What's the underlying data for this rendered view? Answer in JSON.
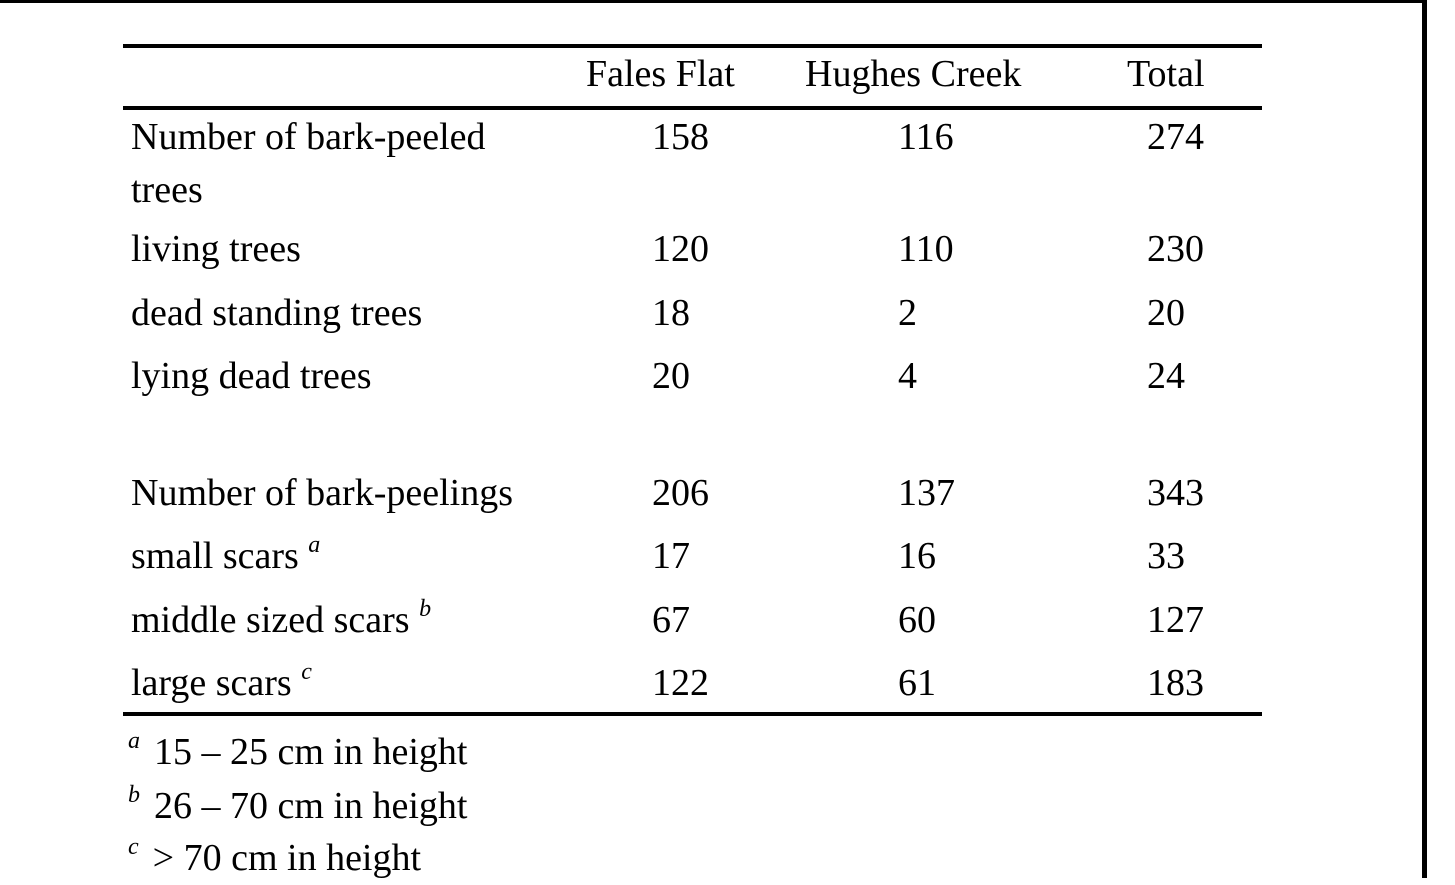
{
  "table": {
    "columns": [
      "",
      "Fales Flat",
      "Hughes Creek",
      "Total"
    ],
    "rows": [
      {
        "label": "Number of bark-peeled",
        "label_cont": "trees",
        "values": [
          "158",
          "116",
          "274"
        ]
      },
      {
        "label": "living trees",
        "values": [
          "120",
          "110",
          "230"
        ]
      },
      {
        "label": "dead standing trees",
        "values": [
          "18",
          "2",
          "20"
        ]
      },
      {
        "label": "lying dead trees",
        "values": [
          "20",
          "4",
          "24"
        ]
      },
      {
        "label": "Number of bark-peelings",
        "values": [
          "206",
          "137",
          "343"
        ]
      },
      {
        "label": "small scars",
        "mark": "a",
        "values": [
          "17",
          "16",
          "33"
        ]
      },
      {
        "label": "middle sized scars",
        "mark": "b",
        "values": [
          "67",
          "60",
          "127"
        ]
      },
      {
        "label": "large scars",
        "mark": "c",
        "values": [
          "122",
          "61",
          "183"
        ]
      }
    ],
    "footnotes": [
      {
        "mark": "a",
        "text": "15 – 25 cm in height"
      },
      {
        "mark": "b",
        "text": "26 – 70 cm in height"
      },
      {
        "mark": "c",
        "text": "> 70 cm in height"
      }
    ]
  }
}
